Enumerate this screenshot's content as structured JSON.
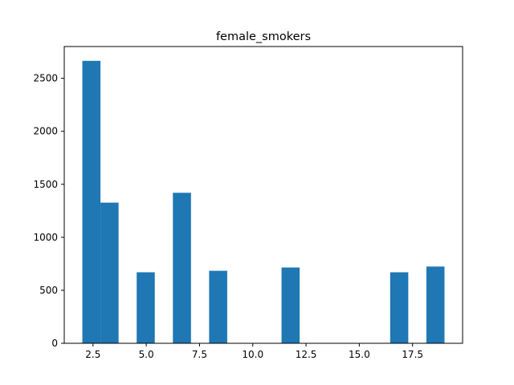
{
  "chart_data": {
    "type": "bar",
    "title": "female_smokers",
    "xlabel": "",
    "ylabel": "",
    "xlim": [
      1.15,
      19.85
    ],
    "ylim": [
      0,
      2800
    ],
    "xticks": [
      2.5,
      5.0,
      7.5,
      10.0,
      12.5,
      15.0,
      17.5
    ],
    "xtick_labels": [
      "2.5",
      "5.0",
      "7.5",
      "10.0",
      "12.5",
      "15.0",
      "17.5"
    ],
    "yticks": [
      0,
      500,
      1000,
      1500,
      2000,
      2500
    ],
    "ytick_labels": [
      "0",
      "500",
      "1000",
      "1500",
      "2000",
      "2500"
    ],
    "bin_start": 2.0,
    "bin_width": 0.85,
    "values": [
      2665,
      1327,
      0,
      670,
      0,
      1420,
      0,
      684,
      0,
      0,
      0,
      715,
      0,
      0,
      0,
      0,
      0,
      670,
      0,
      724
    ],
    "bar_color": "#1f77b4",
    "grid": false
  }
}
